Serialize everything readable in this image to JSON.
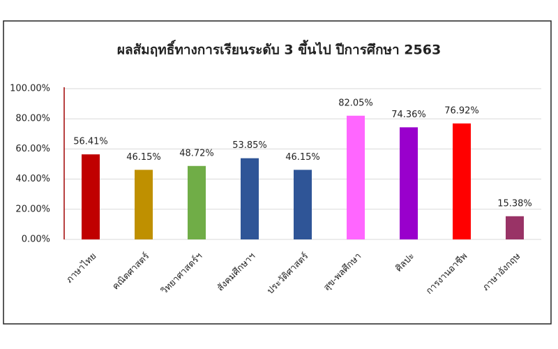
{
  "chart_data": {
    "type": "bar",
    "title": "ผลสัมฤทธิ์ทางการเรียนระดับ 3 ขึ้นไป ปีการศึกษา 2563",
    "categories": [
      "ภาษาไทย",
      "คณิตศาสตร์",
      "วิทยาศาสตร์ฯ",
      "สังคมศึกษาฯ",
      "ประวัติศาสตร์",
      "สุข-พลศึกษา",
      "ศิลปะ",
      "การงานอาชีพ",
      "ภาษาอังกฤษ"
    ],
    "values": [
      56.41,
      46.15,
      48.72,
      53.85,
      46.15,
      82.05,
      74.36,
      76.92,
      15.38
    ],
    "value_labels": [
      "56.41%",
      "46.15%",
      "48.72%",
      "53.85%",
      "46.15%",
      "82.05%",
      "74.36%",
      "76.92%",
      "15.38%"
    ],
    "colors": [
      "#c00000",
      "#bf9000",
      "#70ad47",
      "#2f5597",
      "#2f5597",
      "#ff66ff",
      "#9900cc",
      "#ff0000",
      "#993366"
    ],
    "ylim": [
      0,
      100
    ],
    "yticks": [
      {
        "value": 0,
        "label": "0.00%"
      },
      {
        "value": 20,
        "label": "20.00%"
      },
      {
        "value": 40,
        "label": "40.00%"
      },
      {
        "value": 60,
        "label": "60.00%"
      },
      {
        "value": 80,
        "label": "80.00%"
      },
      {
        "value": 100,
        "label": "100.00%"
      }
    ],
    "grid": true
  }
}
